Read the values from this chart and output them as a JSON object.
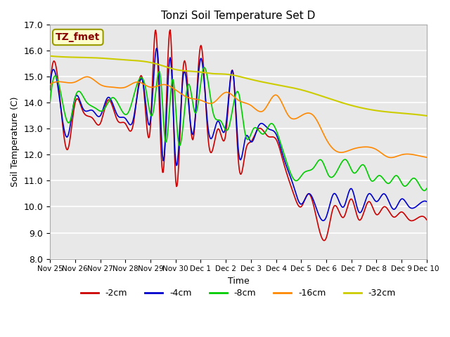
{
  "title": "Tonzi Soil Temperature Set D",
  "xlabel": "Time",
  "ylabel": "Soil Temperature (C)",
  "ylim": [
    8.0,
    17.0
  ],
  "yticks": [
    8.0,
    9.0,
    10.0,
    11.0,
    12.0,
    13.0,
    14.0,
    15.0,
    16.0,
    17.0
  ],
  "xtick_labels": [
    "Nov 25",
    "Nov 26",
    "Nov 27",
    "Nov 28",
    "Nov 29",
    "Nov 30",
    "Dec 1",
    "Dec 2",
    "Dec 3",
    "Dec 4",
    "Dec 5",
    "Dec 6",
    "Dec 7",
    "Dec 8",
    "Dec 9",
    "Dec 10"
  ],
  "legend_labels": [
    "-2cm",
    "-4cm",
    "-8cm",
    "-16cm",
    "-32cm"
  ],
  "legend_colors": [
    "#cc0000",
    "#0000cc",
    "#00cc00",
    "#ff8800",
    "#cccc00"
  ],
  "line_widths": [
    1.2,
    1.2,
    1.2,
    1.2,
    1.5
  ],
  "background_color": "#ffffff",
  "plot_bg_color": "#e8e8e8",
  "grid_color": "#ffffff",
  "annotation_text": "TZ_fmet",
  "annotation_bg": "#ffffcc",
  "annotation_border": "#999900",
  "annotation_text_color": "#880000"
}
